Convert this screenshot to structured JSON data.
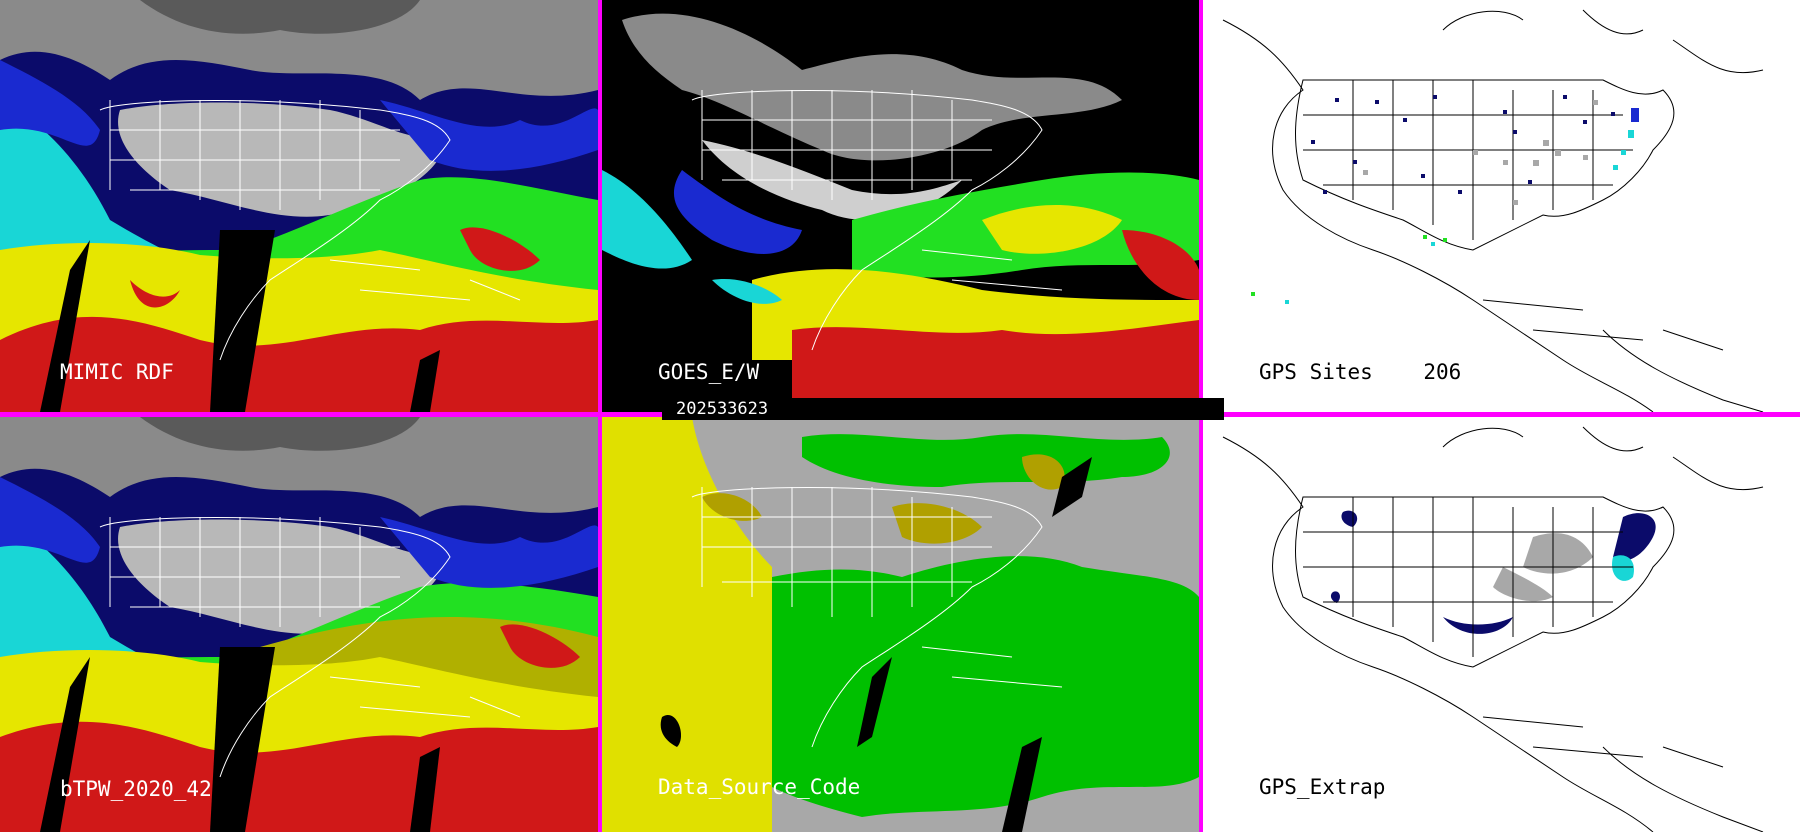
{
  "panels": {
    "mimic": {
      "label": "MIMIC RDF"
    },
    "goes": {
      "label": "GOES_E/W"
    },
    "gps_sites": {
      "label": "GPS Sites",
      "count": "206"
    },
    "btpw": {
      "label": "bTPW_2020_42"
    },
    "data_source": {
      "label": "Data_Source_Code"
    },
    "gps_extrap": {
      "label": "GPS_Extrap"
    }
  },
  "timestamp": "202533623",
  "colors": {
    "divider": "#ff00ff",
    "navy": "#0b0b6a",
    "blue": "#1a2ad0",
    "cyan": "#19d6d6",
    "green": "#22e022",
    "yellow": "#e6e600",
    "olive": "#b0b000",
    "red": "#d01818",
    "ds_green": "#00c000",
    "ds_yellow": "#e0e000",
    "ds_gray": "#a8a8a8"
  }
}
